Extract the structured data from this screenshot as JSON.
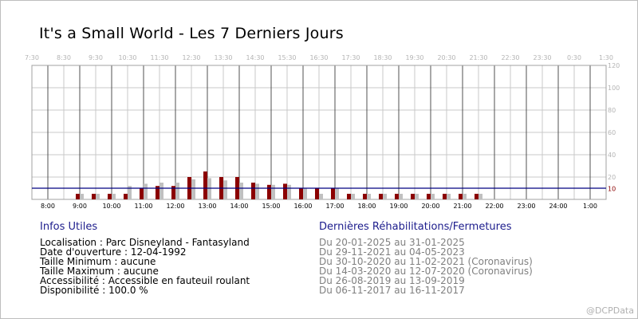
{
  "page": {
    "title": "It's a Small World - Les 7 Derniers Jours",
    "watermark": "@DCPData"
  },
  "chart_data": {
    "type": "bar",
    "title": "It's a Small World - Les 7 Derniers Jours",
    "xlabel": "",
    "ylabel": "",
    "ylim": [
      0,
      120
    ],
    "y_ticks": [
      10,
      20,
      40,
      60,
      80,
      100,
      120
    ],
    "reference_line": {
      "value": 10,
      "label": "10",
      "color": "#000080"
    },
    "top_axis_labels": [
      "7:30",
      "8:30",
      "9:30",
      "10:30",
      "11:30",
      "12:30",
      "13:30",
      "14:30",
      "15:30",
      "16:30",
      "17:30",
      "18:30",
      "19:30",
      "20:30",
      "21:30",
      "22:30",
      "23:30",
      "0:30",
      "1:30"
    ],
    "bottom_axis_labels": [
      "8:00",
      "9:00",
      "10:00",
      "11:00",
      "12:00",
      "13:00",
      "14:00",
      "15:00",
      "16:00",
      "17:00",
      "18:00",
      "19:00",
      "20:00",
      "21:00",
      "22:00",
      "23:00",
      "24:00",
      "1:00"
    ],
    "categories": [
      "9:00",
      "9:30",
      "10:00",
      "10:30",
      "11:00",
      "11:30",
      "12:00",
      "12:30",
      "13:00",
      "13:30",
      "14:00",
      "14:30",
      "15:00",
      "15:30",
      "16:00",
      "16:30",
      "17:00",
      "17:30",
      "18:00",
      "18:30",
      "19:00",
      "19:30",
      "20:00",
      "20:30",
      "21:00",
      "21:30"
    ],
    "series": [
      {
        "color": "#8b0000",
        "values": [
          5,
          5,
          5,
          5,
          10,
          12,
          12,
          20,
          25,
          20,
          20,
          15,
          13,
          14,
          10,
          10,
          10,
          5,
          5,
          5,
          5,
          5,
          5,
          5,
          5,
          5
        ]
      },
      {
        "color": "#c0c0c0",
        "values": [
          5,
          5,
          5,
          12,
          14,
          15,
          15,
          18,
          19,
          17,
          15,
          14,
          13,
          13,
          10,
          5,
          10,
          5,
          5,
          5,
          5,
          5,
          5,
          5,
          5,
          5
        ]
      }
    ],
    "grid": true
  },
  "info": {
    "title": "Infos Utiles",
    "lines": [
      "Localisation : Parc Disneyland - Fantasyland",
      "Date d'ouverture : 12-04-1992",
      "Taille Minimum : aucune",
      "Taille Maximum : aucune",
      "Accessibilité : Accessible en fauteuil roulant",
      "Disponibilité : 100.0 %"
    ]
  },
  "rehab": {
    "title": "Dernières Réhabilitations/Fermetures",
    "lines": [
      "Du 20-01-2025 au 31-01-2025",
      "Du 29-11-2021 au 04-05-2023",
      "Du 30-10-2020 au 11-02-2021 (Coronavirus)",
      "Du 14-03-2020 au 12-07-2020 (Coronavirus)",
      "Du 26-08-2019 au 13-09-2019",
      "Du 06-11-2017 au 16-11-2017"
    ]
  }
}
